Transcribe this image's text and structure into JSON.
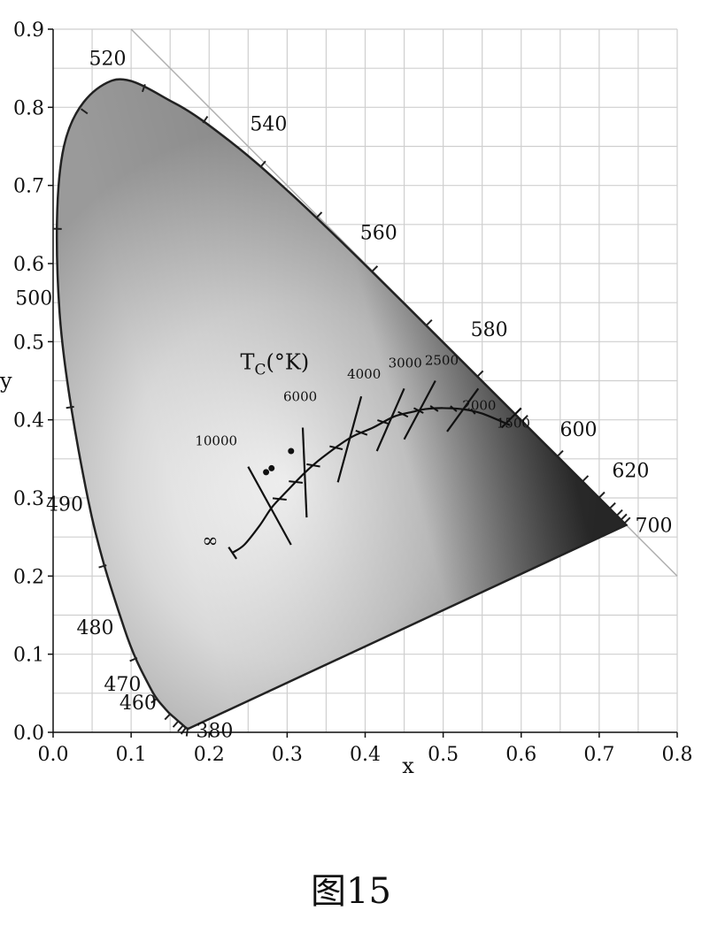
{
  "chart_data": {
    "type": "line",
    "title": "",
    "xlabel": "x",
    "ylabel": "y",
    "xlim": [
      0.0,
      0.8
    ],
    "ylim": [
      0.0,
      0.9
    ],
    "x_ticks": [
      "0.0",
      "0.1",
      "0.2",
      "0.3",
      "0.4",
      "0.5",
      "0.6",
      "0.7",
      "0.8"
    ],
    "y_ticks": [
      "0.0",
      "0.1",
      "0.2",
      "0.3",
      "0.4",
      "0.5",
      "0.6",
      "0.7",
      "0.8",
      "0.9"
    ],
    "grid": true,
    "spectral_locus": [
      {
        "x": 0.1741,
        "y": 0.005
      },
      {
        "x": 0.1738,
        "y": 0.0049
      },
      {
        "x": 0.1736,
        "y": 0.0048
      },
      {
        "x": 0.1714,
        "y": 0.0051
      },
      {
        "x": 0.1689,
        "y": 0.0069
      },
      {
        "x": 0.1644,
        "y": 0.0109
      },
      {
        "x": 0.1566,
        "y": 0.0177
      },
      {
        "x": 0.144,
        "y": 0.0297
      },
      {
        "x": 0.1241,
        "y": 0.0578
      },
      {
        "x": 0.0913,
        "y": 0.1327
      },
      {
        "x": 0.0454,
        "y": 0.295
      },
      {
        "x": 0.0082,
        "y": 0.5384
      },
      {
        "x": 0.0139,
        "y": 0.7502
      },
      {
        "x": 0.0743,
        "y": 0.8338
      },
      {
        "x": 0.1547,
        "y": 0.8059
      },
      {
        "x": 0.2296,
        "y": 0.7543
      },
      {
        "x": 0.3016,
        "y": 0.6923
      },
      {
        "x": 0.3731,
        "y": 0.6245
      },
      {
        "x": 0.4441,
        "y": 0.5547
      },
      {
        "x": 0.5125,
        "y": 0.4866
      },
      {
        "x": 0.5752,
        "y": 0.4242
      },
      {
        "x": 0.627,
        "y": 0.3725
      },
      {
        "x": 0.6658,
        "y": 0.334
      },
      {
        "x": 0.6915,
        "y": 0.3083
      },
      {
        "x": 0.7079,
        "y": 0.292
      },
      {
        "x": 0.719,
        "y": 0.2809
      },
      {
        "x": 0.726,
        "y": 0.274
      },
      {
        "x": 0.73,
        "y": 0.27
      },
      {
        "x": 0.7347,
        "y": 0.2653
      }
    ],
    "wavelength_labels": [
      {
        "label": "380",
        "x": 0.1741,
        "y": 0.005
      },
      {
        "label": "460",
        "x": 0.144,
        "y": 0.0297
      },
      {
        "label": "470",
        "x": 0.1241,
        "y": 0.0578
      },
      {
        "label": "480",
        "x": 0.0913,
        "y": 0.1327
      },
      {
        "label": "490",
        "x": 0.0454,
        "y": 0.295
      },
      {
        "label": "500",
        "x": 0.0082,
        "y": 0.5384
      },
      {
        "label": "520",
        "x": 0.0743,
        "y": 0.8338
      },
      {
        "label": "540",
        "x": 0.2296,
        "y": 0.7543
      },
      {
        "label": "560",
        "x": 0.3731,
        "y": 0.6245
      },
      {
        "label": "580",
        "x": 0.5125,
        "y": 0.4866
      },
      {
        "label": "600",
        "x": 0.627,
        "y": 0.3725
      },
      {
        "label": "620",
        "x": 0.6915,
        "y": 0.3083
      },
      {
        "label": "700",
        "x": 0.7347,
        "y": 0.2653
      }
    ],
    "planckian_locus": [
      {
        "x": 0.23,
        "y": 0.23
      },
      {
        "x": 0.245,
        "y": 0.24
      },
      {
        "x": 0.265,
        "y": 0.265
      },
      {
        "x": 0.2807,
        "y": 0.2883
      },
      {
        "x": 0.3,
        "y": 0.309
      },
      {
        "x": 0.3221,
        "y": 0.3318
      },
      {
        "x": 0.345,
        "y": 0.3516
      },
      {
        "x": 0.3805,
        "y": 0.3768
      },
      {
        "x": 0.41,
        "y": 0.39
      },
      {
        "x": 0.4369,
        "y": 0.4041
      },
      {
        "x": 0.46,
        "y": 0.41
      },
      {
        "x": 0.477,
        "y": 0.4137
      },
      {
        "x": 0.5,
        "y": 0.415
      },
      {
        "x": 0.5267,
        "y": 0.4133
      },
      {
        "x": 0.55,
        "y": 0.408
      },
      {
        "x": 0.5857,
        "y": 0.3931
      }
    ],
    "isotemperature_lines": [
      {
        "label": "∞",
        "x1": 0.225,
        "y1": 0.237,
        "x2": 0.235,
        "y2": 0.222
      },
      {
        "label": "10000",
        "x1": 0.25,
        "y1": 0.34,
        "x2": 0.305,
        "y2": 0.24
      },
      {
        "label": "6000",
        "x1": 0.32,
        "y1": 0.39,
        "x2": 0.325,
        "y2": 0.275
      },
      {
        "label": "4000",
        "x1": 0.395,
        "y1": 0.43,
        "x2": 0.365,
        "y2": 0.32
      },
      {
        "label": "3000",
        "x1": 0.45,
        "y1": 0.44,
        "x2": 0.415,
        "y2": 0.36
      },
      {
        "label": "2500",
        "x1": 0.49,
        "y1": 0.45,
        "x2": 0.45,
        "y2": 0.375
      },
      {
        "label": "2000",
        "x1": 0.545,
        "y1": 0.44,
        "x2": 0.505,
        "y2": 0.385
      },
      {
        "label": "1500",
        "x1": 0.6,
        "y1": 0.415,
        "x2": 0.575,
        "y2": 0.39
      }
    ],
    "temperature_label": "T",
    "temperature_label_sub": "C",
    "temperature_label_unit": "(°K)",
    "points": [
      {
        "x": 0.273,
        "y": 0.333
      },
      {
        "x": 0.28,
        "y": 0.338
      },
      {
        "x": 0.305,
        "y": 0.36
      }
    ],
    "diagonal": [
      {
        "x": 0.1,
        "y": 0.9
      },
      {
        "x": 0.8,
        "y": 0.2
      }
    ]
  },
  "caption": "图15",
  "colors": {
    "locus": "#222222",
    "grid": "#c8c8c8",
    "background": "#ffffff"
  }
}
